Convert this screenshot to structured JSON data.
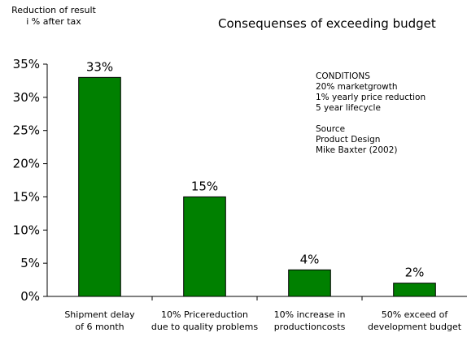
{
  "y_axis_title": [
    "Reduction of result",
    "i % after tax"
  ],
  "title": "Consequenses of exceeding budget",
  "conditions": {
    "heading": "CONDITIONS",
    "lines": [
      "20% marketgrowth",
      "1% yearly price reduction",
      "5 year lifecycle"
    ],
    "source_heading": "Source",
    "source_lines": [
      "Product Design",
      "Mike Baxter (2002)"
    ]
  },
  "colors": {
    "bar": "#008000",
    "bar_stroke": "#000000"
  },
  "chart_data": {
    "type": "bar",
    "title": "Consequenses of exceeding budget",
    "ylabel": "Reduction of result i % after tax",
    "xlabel": "",
    "categories": [
      [
        "Shipment delay",
        "of 6 month"
      ],
      [
        "10% Pricereduction",
        "due to quality problems"
      ],
      [
        "10% increase in",
        "productioncosts"
      ],
      [
        "50% exceed of",
        "development budget"
      ]
    ],
    "values": [
      33,
      15,
      4,
      2
    ],
    "data_labels": [
      "33%",
      "15%",
      "4%",
      "2%"
    ],
    "ylim": [
      0,
      35
    ],
    "yticks": [
      0,
      5,
      10,
      15,
      20,
      25,
      30,
      35
    ],
    "ytick_labels": [
      "0%",
      "5%",
      "10%",
      "15%",
      "20%",
      "25%",
      "30%",
      "35%"
    ],
    "grid": false,
    "legend": "none"
  }
}
